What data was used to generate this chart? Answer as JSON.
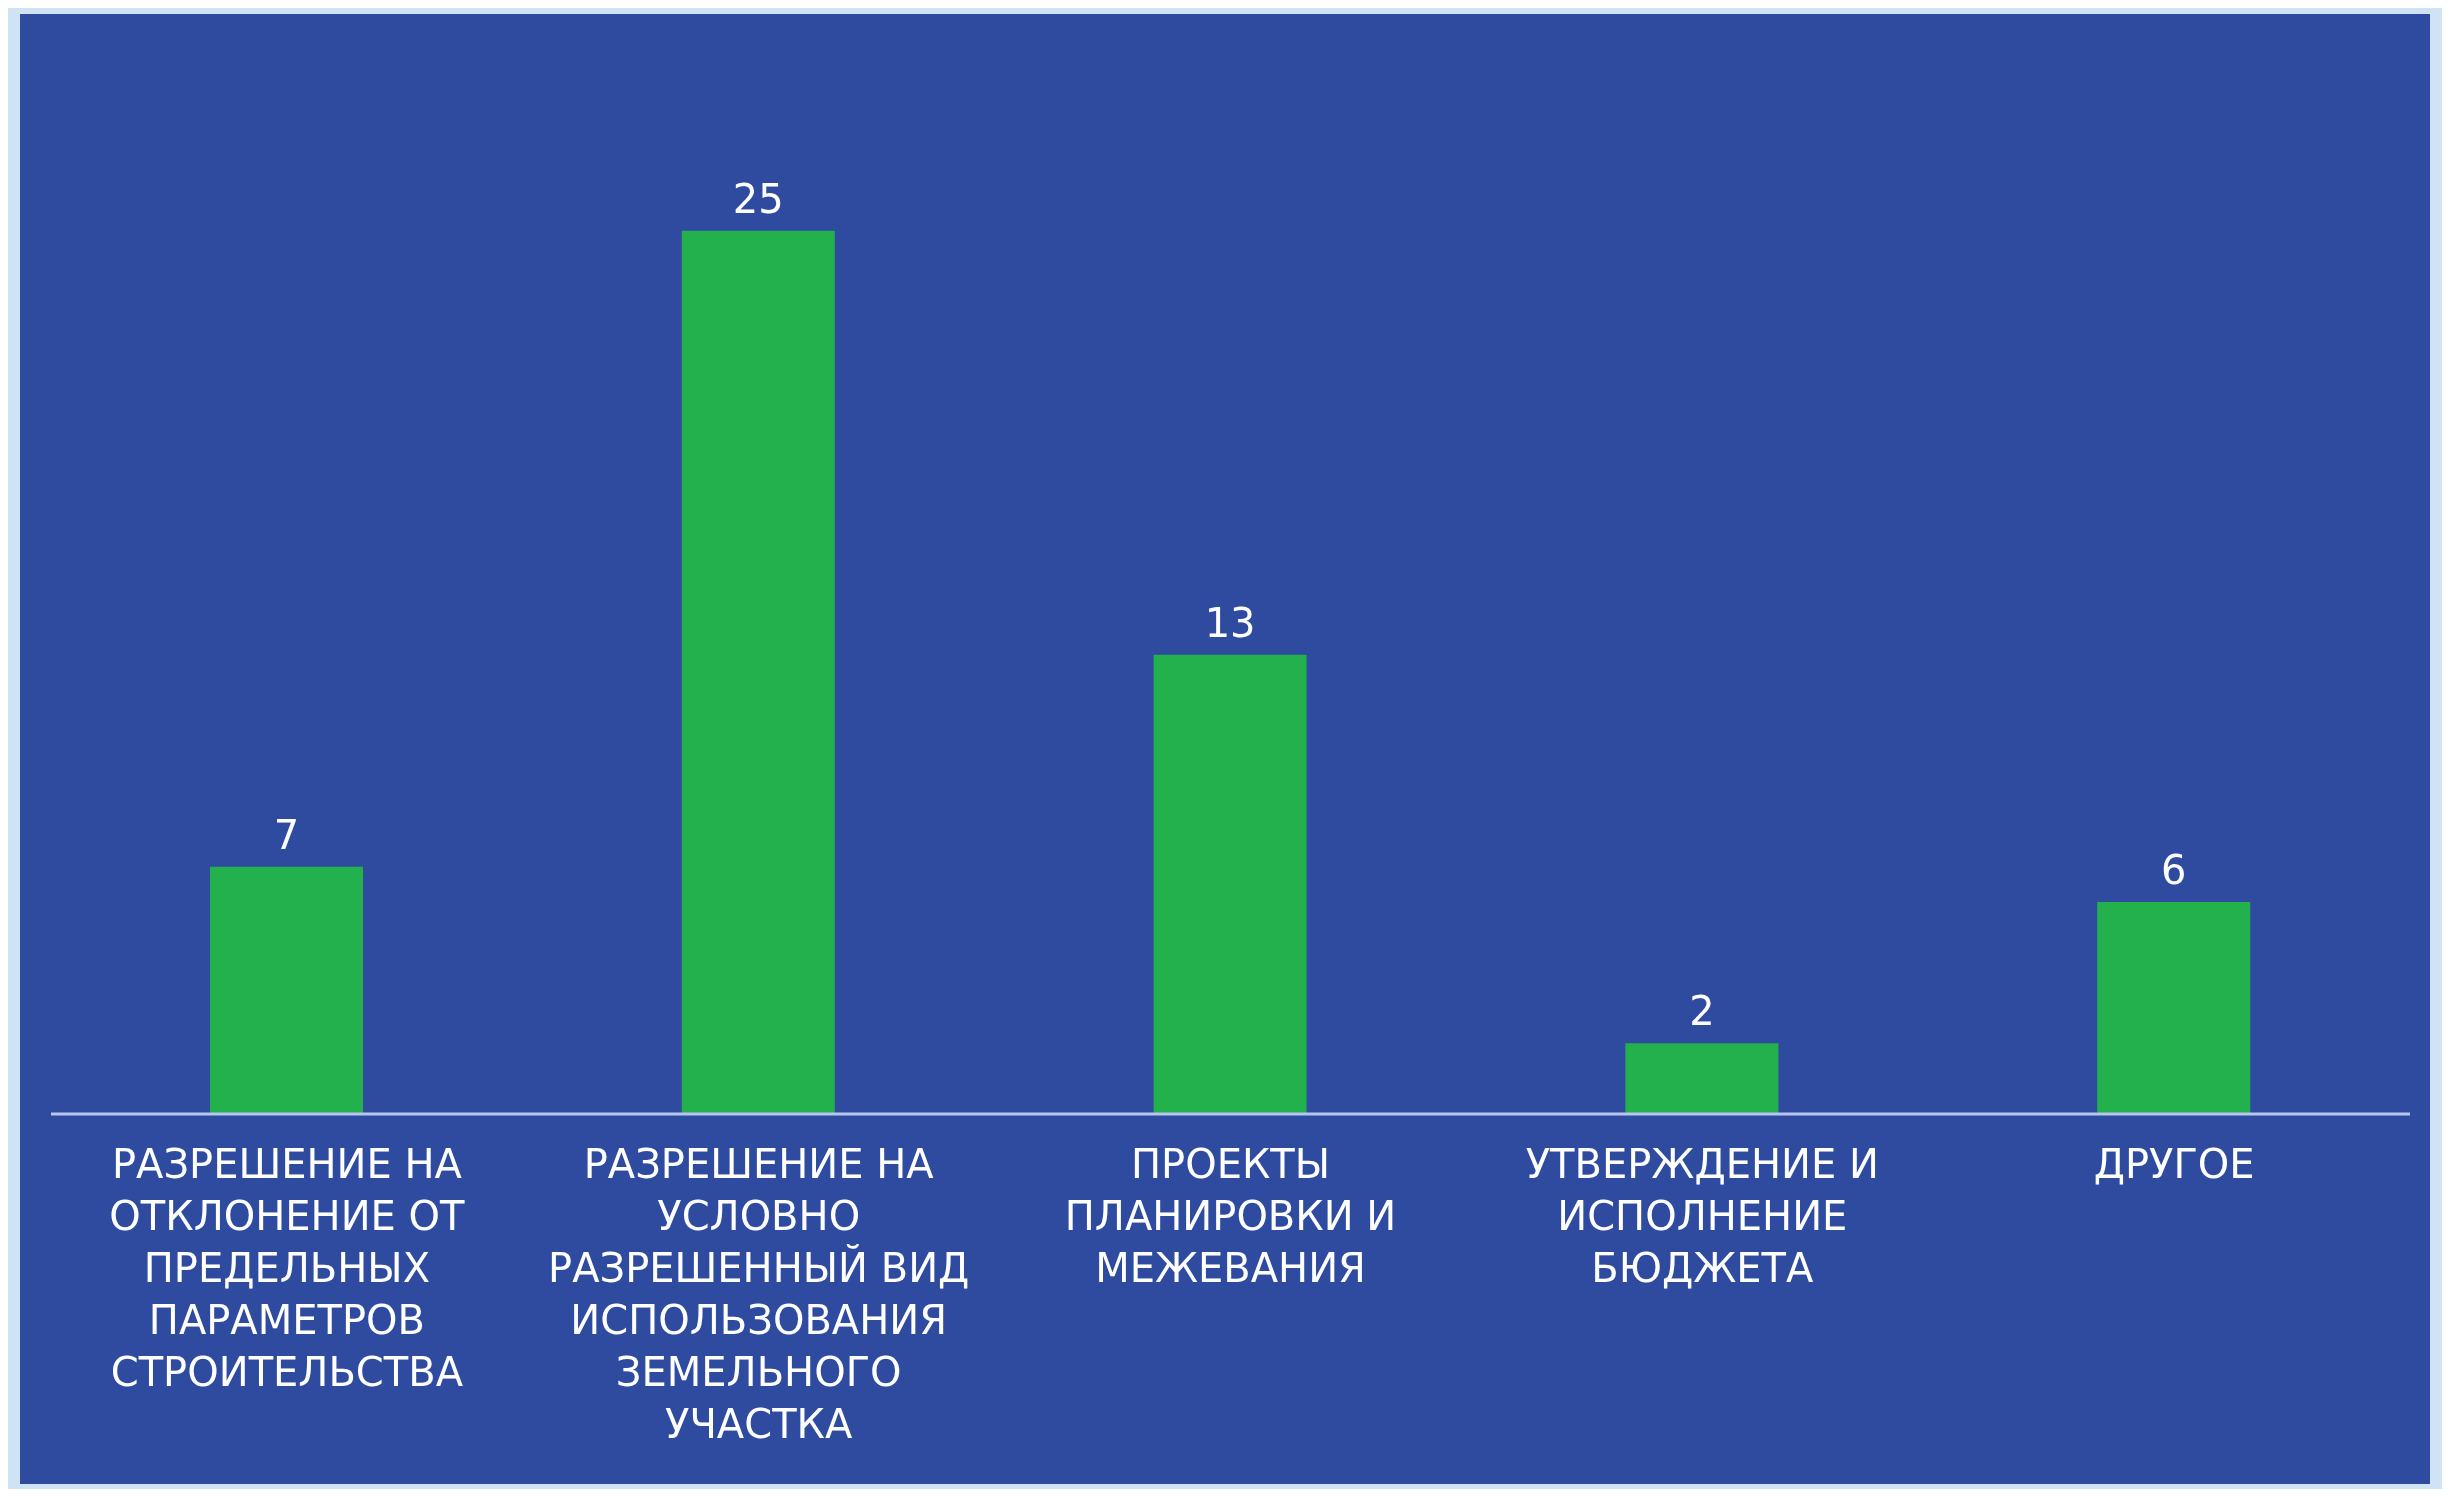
{
  "chart_data": {
    "type": "bar",
    "categories": [
      "РАЗРЕШЕНИЕ НА ОТКЛОНЕНИЕ ОТ ПРЕДЕЛЬНЫХ ПАРАМЕТРОВ СТРОИТЕЛЬСТВА",
      "РАЗРЕШЕНИЕ НА УСЛОВНО РАЗРЕШЕННЫЙ ВИД ИСПОЛЬЗОВАНИЯ ЗЕМЕЛЬНОГО УЧАСТКА",
      "ПРОЕКТЫ ПЛАНИРОВКИ И МЕЖЕВАНИЯ",
      "УТВЕРЖДЕНИЕ И ИСПОЛНЕНИЕ БЮДЖЕТА",
      "ДРУГОЕ"
    ],
    "values": [
      7,
      25,
      13,
      2,
      6
    ],
    "color": "#22b14c",
    "data_labels": true,
    "tick_labels": "x"
  }
}
